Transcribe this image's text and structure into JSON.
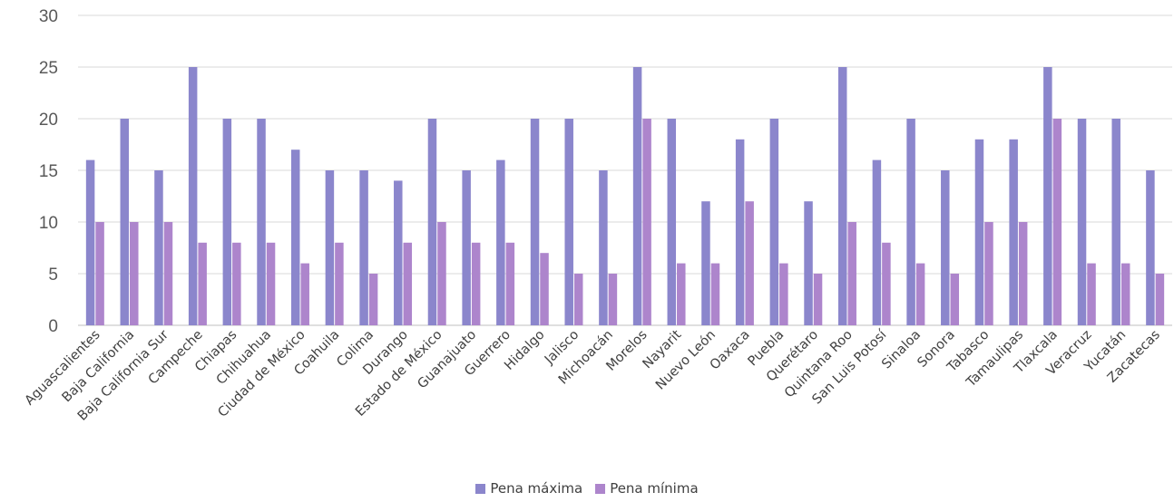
{
  "chart_data": {
    "type": "bar",
    "categories": [
      "Aguascalientes",
      "Baja California",
      "Baja California Sur",
      "Campeche",
      "Chiapas",
      "Chihuahua",
      "Ciudad de México",
      "Coahuila",
      "Colima",
      "Durango",
      "Estado de México",
      "Guanajuato",
      "Guerrero",
      "Hidalgo",
      "Jalisco",
      "Michoacán",
      "Morelos",
      "Nayarit",
      "Nuevo León",
      "Oaxaca",
      "Puebla",
      "Querétaro",
      "Quintana Roo",
      "San Luis Potosí",
      "Sinaloa",
      "Sonora",
      "Tabasco",
      "Tamaulipas",
      "Tlaxcala",
      "Veracruz",
      "Yucatán",
      "Zacatecas"
    ],
    "series": [
      {
        "name": "Pena máxima",
        "color": "#8b86cc",
        "values": [
          16,
          20,
          15,
          25,
          20,
          20,
          17,
          15,
          15,
          14,
          20,
          15,
          16,
          20,
          20,
          15,
          25,
          20,
          12,
          18,
          20,
          12,
          25,
          16,
          20,
          15,
          18,
          18,
          25,
          20,
          20,
          15
        ]
      },
      {
        "name": "Pena mínima",
        "color": "#ad85cc",
        "values": [
          10,
          10,
          10,
          8,
          8,
          8,
          6,
          8,
          5,
          8,
          10,
          8,
          8,
          7,
          5,
          5,
          20,
          6,
          6,
          12,
          6,
          5,
          10,
          8,
          6,
          5,
          10,
          10,
          20,
          6,
          6,
          5
        ]
      }
    ],
    "title": "",
    "xlabel": "",
    "ylabel": "",
    "ylim": [
      0,
      30
    ],
    "yticks": [
      0,
      5,
      10,
      15,
      20,
      25,
      30
    ],
    "grid": true,
    "legend_position": "bottom"
  }
}
